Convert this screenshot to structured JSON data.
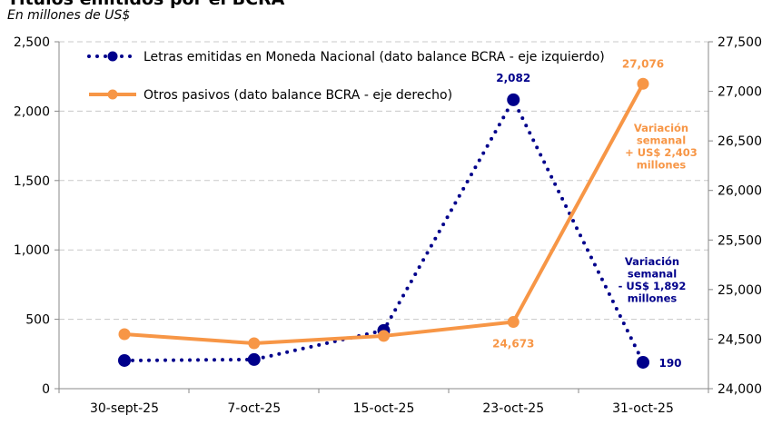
{
  "chart_data": {
    "type": "line",
    "title": "Títulos emitidos por el BCRA",
    "subtitle": "En millones de US$",
    "categories": [
      "30-sept-25",
      "7-oct-25",
      "15-oct-25",
      "23-oct-25",
      "31-oct-25"
    ],
    "y_left": {
      "range": [
        0,
        2500
      ],
      "ticks": [
        "0",
        "500",
        "1,000",
        "1,500",
        "2,000",
        "2,500"
      ]
    },
    "y_right": {
      "range": [
        24000,
        27500
      ],
      "ticks": [
        "24,000",
        "24,500",
        "25,000",
        "25,500",
        "26,000",
        "26,500",
        "27,000",
        "27,500"
      ]
    },
    "grid": true,
    "legend_position": "top-left",
    "series": [
      {
        "name": "Letras emitidas en Moneda Nacional (dato balance BCRA - eje izquierdo)",
        "axis": "left",
        "style": "dotted",
        "color": "#00008B",
        "values": [
          203,
          210,
          420,
          2082,
          190
        ],
        "labels": [
          "",
          "",
          "",
          "2,082",
          "190"
        ]
      },
      {
        "name": "Otros pasivos (dato balance BCRA - eje derecho)",
        "axis": "right",
        "style": "solid",
        "color": "#F79646",
        "values": [
          24550,
          24458,
          24532,
          24673,
          27076
        ],
        "labels": [
          "",
          "",
          "",
          "24,673",
          "27,076"
        ]
      }
    ],
    "annotations": [
      {
        "lines": [
          "Variación",
          "semanal",
          "+ US$ 2,403",
          "millones"
        ],
        "color": "#F79646"
      },
      {
        "lines": [
          "Variación",
          "semanal",
          "- US$ 1,892",
          "millones"
        ],
        "color": "#00008B"
      }
    ]
  }
}
